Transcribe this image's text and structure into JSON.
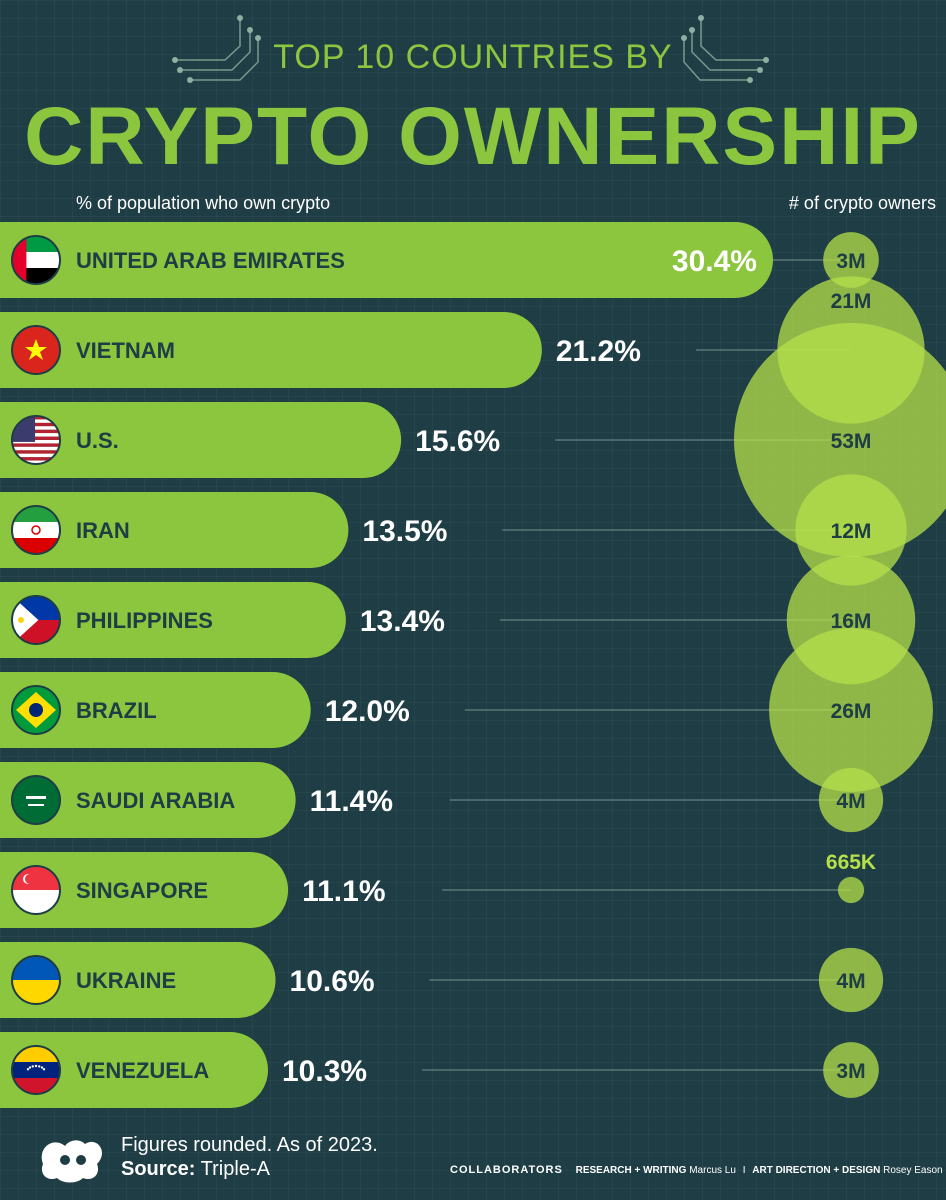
{
  "header": {
    "title_top": "TOP 10 COUNTRIES BY",
    "title_main": "CRYPTO OWNERSHIP",
    "left_label": "% of population who own crypto",
    "right_label": "# of crypto owners"
  },
  "colors": {
    "background": "#1e3d45",
    "bar": "#8cc63f",
    "bubble": "#b6e04a",
    "text_dark": "#1e3d45",
    "text_light": "#ffffff"
  },
  "chart_data": {
    "type": "bar",
    "orientation": "horizontal",
    "categories": [
      "UNITED ARAB EMIRATES",
      "VIETNAM",
      "U.S.",
      "IRAN",
      "PHILIPPINES",
      "BRAZIL",
      "SAUDI ARABIA",
      "SINGAPORE",
      "UKRAINE",
      "VENEZUELA"
    ],
    "series": [
      {
        "values": [
          30.4,
          21.2,
          15.6,
          13.5,
          13.4,
          12.0,
          11.4,
          11.1,
          10.6,
          10.3
        ],
        "labels": [
          "30.4%",
          "21.2%",
          "15.6%",
          "13.5%",
          "13.4%",
          "12.0%",
          "11.4%",
          "11.1%",
          "10.6%",
          "10.3%"
        ]
      }
    ],
    "owners": {
      "values": [
        3000000,
        21000000,
        53000000,
        12000000,
        16000000,
        26000000,
        4000000,
        665000,
        4000000,
        3000000
      ],
      "labels": [
        "3M",
        "21M",
        "53M",
        "12M",
        "16M",
        "26M",
        "4M",
        "665K",
        "4M",
        "3M"
      ]
    },
    "flags": [
      "uae-flag-icon",
      "vietnam-flag-icon",
      "us-flag-icon",
      "iran-flag-icon",
      "philippines-flag-icon",
      "brazil-flag-icon",
      "saudi-arabia-flag-icon",
      "singapore-flag-icon",
      "ukraine-flag-icon",
      "venezuela-flag-icon"
    ],
    "xlabel": "% of population who own crypto",
    "ylabel": "",
    "grid": true
  },
  "footer": {
    "note": "Figures rounded. As of 2023.",
    "source_label": "Source:",
    "source_value": "Triple-A",
    "collab_label": "COLLABORATORS",
    "research_label": "RESEARCH + WRITING",
    "research_name": "Marcus Lu",
    "separator": "I",
    "design_label": "ART DIRECTION + DESIGN",
    "design_name": "Rosey Eason"
  }
}
